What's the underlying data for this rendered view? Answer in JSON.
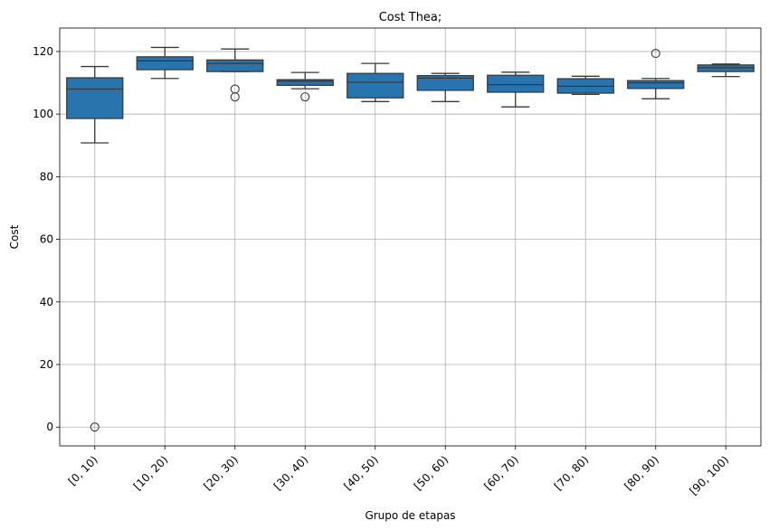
{
  "chart_data": {
    "type": "boxplot",
    "title": "Cost Thea;",
    "xlabel": "Grupo de etapas",
    "ylabel": "Cost",
    "ylim": [
      -6,
      127.5
    ],
    "yticks": [
      0,
      20,
      40,
      60,
      80,
      100,
      120
    ],
    "grid": true,
    "legend": "none",
    "colors": {
      "box": "#2a74ad",
      "edge": "#3a3a3a",
      "grid": "#b0b0b0"
    },
    "categories": [
      "[0, 10)",
      "[10, 20)",
      "[20, 30)",
      "[30, 40)",
      "[40, 50)",
      "[50, 60)",
      "[60, 70)",
      "[70, 80)",
      "[80, 90)",
      "[90, 100)"
    ],
    "boxes": [
      {
        "whislo": 90.8,
        "q1": 98.6,
        "med": 108.0,
        "q3": 111.6,
        "whishi": 115.2,
        "fliers": [
          0
        ]
      },
      {
        "whislo": 111.4,
        "q1": 114.2,
        "med": 117.0,
        "q3": 118.3,
        "whishi": 121.3,
        "fliers": []
      },
      {
        "whislo": 113.6,
        "q1": 113.6,
        "med": 116.2,
        "q3": 117.3,
        "whishi": 120.8,
        "fliers": [
          108.0,
          105.5
        ]
      },
      {
        "whislo": 108.1,
        "q1": 109.2,
        "med": 110.5,
        "q3": 111.0,
        "whishi": 113.3,
        "fliers": [
          105.5
        ]
      },
      {
        "whislo": 104.0,
        "q1": 105.2,
        "med": 110.2,
        "q3": 113.0,
        "whishi": 116.2,
        "fliers": []
      },
      {
        "whislo": 104.0,
        "q1": 107.6,
        "med": 111.5,
        "q3": 112.3,
        "whishi": 113.0,
        "fliers": []
      },
      {
        "whislo": 102.3,
        "q1": 107.0,
        "med": 109.4,
        "q3": 112.4,
        "whishi": 113.4,
        "fliers": []
      },
      {
        "whislo": 106.3,
        "q1": 106.7,
        "med": 108.9,
        "q3": 111.3,
        "whishi": 112.1,
        "fliers": []
      },
      {
        "whislo": 104.9,
        "q1": 108.2,
        "med": 110.0,
        "q3": 110.7,
        "whishi": 111.4,
        "fliers": [
          119.4
        ]
      },
      {
        "whislo": 112.0,
        "q1": 113.6,
        "med": 114.8,
        "q3": 115.7,
        "whishi": 116.0,
        "fliers": []
      }
    ]
  }
}
